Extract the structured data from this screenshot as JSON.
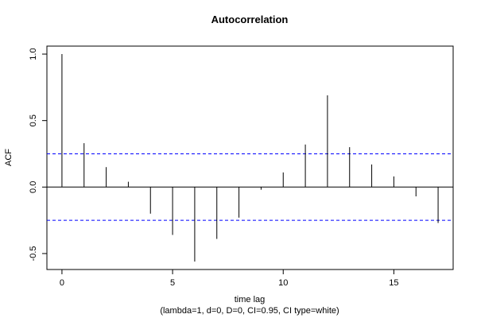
{
  "chart_data": {
    "type": "bar",
    "subtype": "acf-stem",
    "title": "Autocorrelation",
    "xlabel": "time lag",
    "subtitle": "(lambda=1, d=0, D=0, CI=0.95, CI type=white)",
    "ylabel": "ACF",
    "x": [
      0,
      1,
      2,
      3,
      4,
      5,
      6,
      7,
      8,
      9,
      10,
      11,
      12,
      13,
      14,
      15,
      16,
      17
    ],
    "values": [
      1.0,
      0.33,
      0.15,
      0.04,
      -0.2,
      -0.36,
      -0.56,
      -0.39,
      -0.23,
      -0.02,
      0.11,
      0.32,
      0.69,
      0.3,
      0.17,
      0.08,
      -0.07,
      -0.27
    ],
    "xlim": [
      -0.68,
      17.68
    ],
    "ylim": [
      -0.62,
      1.06
    ],
    "x_ticks": [
      "0",
      "5",
      "10",
      "15"
    ],
    "y_ticks": [
      "-0.5",
      "0.0",
      "0.5",
      "1.0"
    ],
    "ci_bounds": [
      0.25,
      -0.25
    ],
    "ci_color": "#0000ff",
    "stem_color": "#000000",
    "grid": false
  }
}
